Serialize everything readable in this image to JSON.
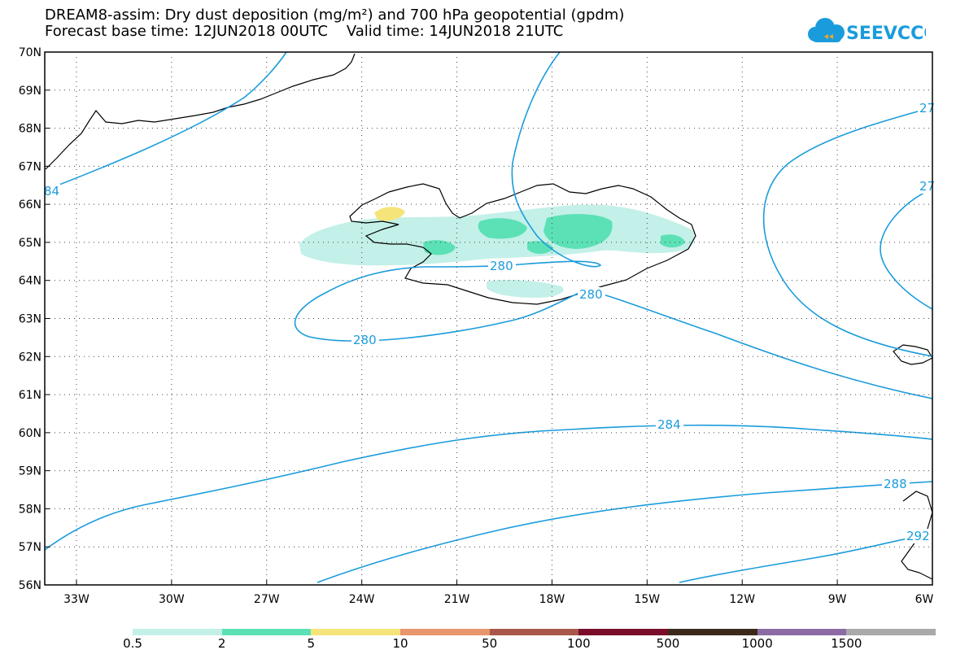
{
  "title_line1": "DREAM8-assim: Dry dust deposition (mg/m²) and 700 hPa geopotential (gpdm)",
  "title_line2": "Forecast base time: 12JUN2018 00UTC    Valid time: 14JUN2018 21UTC",
  "logo_text": "SEEVCCC",
  "lat_labels": [
    "70N",
    "69N",
    "68N",
    "67N",
    "66N",
    "65N",
    "64N",
    "63N",
    "62N",
    "61N",
    "60N",
    "59N",
    "58N",
    "57N",
    "56N"
  ],
  "lon_labels": [
    "33W",
    "30W",
    "27W",
    "24W",
    "21W",
    "18W",
    "15W",
    "12W",
    "9W",
    "6W"
  ],
  "contour_labels": [
    "280",
    "280",
    "280",
    "284",
    "288",
    "84",
    "27",
    "27",
    "292"
  ],
  "legend": {
    "colors": [
      "#c3f0e8",
      "#5be1b5",
      "#f5e47a",
      "#e8956b",
      "#a9574a",
      "#7a0e2a",
      "#3b2a1c",
      "#8c6aa3",
      "#a9a9a9"
    ],
    "labels": [
      "0.5",
      "2",
      "5",
      "10",
      "50",
      "100",
      "500",
      "1000",
      "1500"
    ]
  },
  "colors": {
    "contour": "#1a9cdc",
    "grid": "#444444"
  }
}
